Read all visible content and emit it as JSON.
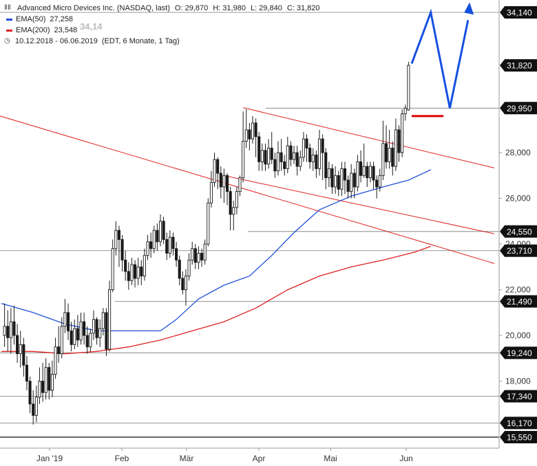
{
  "legend": {
    "title": "Advanced Micro Devices Inc. (NASDAQ, last)",
    "open": "O: 29,870",
    "high": "H: 31,980",
    "low": "L: 29,840",
    "close": "C: 31,820",
    "ema50_label": "EMA(50)",
    "ema50_value": "27,258",
    "ema200_label": "EMA(200)",
    "ema200_value": "23,548",
    "range": "10.12.2018 - 06.06.2019",
    "range_note": "(EDT, 6 Monate, 1 Tag)",
    "ghost_value": "34,14"
  },
  "colors": {
    "candle": "#1a1a1a",
    "ema50": "#1f4fd8",
    "ema200": "#e02020",
    "trend": "#e02020",
    "forecast": "#1450e0",
    "marker": "#dd0000",
    "price_tag": "#111111",
    "grid": "#d0d0d0"
  },
  "chart_data": {
    "type": "candlestick",
    "x_labels": [
      "Jan '19",
      "Feb",
      "Mär",
      "Apr",
      "Mai",
      "Jun"
    ],
    "y_ticks": [
      "18,000",
      "20,000",
      "22,000",
      "24,000",
      "26,000",
      "28,000"
    ],
    "ylim": [
      15.3,
      34.4
    ],
    "level_tags": [
      "34,140",
      "31,820",
      "29,950",
      "24,550",
      "23,710",
      "21,490",
      "19,240",
      "17,340",
      "16,170",
      "15,550"
    ],
    "levels": [
      34.14,
      29.95,
      24.55,
      23.71,
      21.49,
      19.24,
      17.34,
      16.17,
      15.55
    ],
    "current_price": 31.82,
    "ema50": [
      [
        0,
        21.4
      ],
      [
        10,
        21.0
      ],
      [
        20,
        20.5
      ],
      [
        30,
        20.2
      ],
      [
        40,
        20.2
      ],
      [
        50,
        20.2
      ],
      [
        55,
        20.7
      ],
      [
        62,
        21.6
      ],
      [
        70,
        22.2
      ],
      [
        78,
        22.6
      ],
      [
        85,
        23.5
      ],
      [
        92,
        24.5
      ],
      [
        100,
        25.5
      ],
      [
        110,
        26.1
      ],
      [
        120,
        26.5
      ],
      [
        128,
        26.8
      ],
      [
        135,
        27.25
      ]
    ],
    "ema200": [
      [
        0,
        19.3
      ],
      [
        10,
        19.3
      ],
      [
        20,
        19.2
      ],
      [
        30,
        19.3
      ],
      [
        40,
        19.5
      ],
      [
        50,
        19.8
      ],
      [
        60,
        20.2
      ],
      [
        70,
        20.6
      ],
      [
        80,
        21.2
      ],
      [
        90,
        22.0
      ],
      [
        100,
        22.6
      ],
      [
        110,
        23.0
      ],
      [
        120,
        23.3
      ],
      [
        130,
        23.65
      ],
      [
        135,
        23.9
      ]
    ],
    "candles": [
      [
        1,
        20.0,
        20.4,
        21.4,
        19.5
      ],
      [
        2,
        20.4,
        19.9,
        21.1,
        19.3
      ],
      [
        3,
        19.9,
        20.6,
        21.2,
        19.2
      ],
      [
        4,
        20.6,
        20.0,
        21.3,
        19.6
      ],
      [
        5,
        20.0,
        19.2,
        20.5,
        18.8
      ],
      [
        6,
        19.2,
        19.6,
        20.2,
        18.6
      ],
      [
        7,
        19.6,
        18.7,
        19.9,
        18.2
      ],
      [
        8,
        18.7,
        18.0,
        19.1,
        17.6
      ],
      [
        9,
        18.0,
        17.0,
        18.2,
        16.6
      ],
      [
        10,
        17.0,
        16.5,
        17.6,
        16.1
      ],
      [
        11,
        16.5,
        17.3,
        17.8,
        16.2
      ],
      [
        12,
        17.3,
        18.0,
        18.6,
        17.0
      ],
      [
        13,
        18.0,
        17.5,
        18.8,
        17.1
      ],
      [
        14,
        17.5,
        18.6,
        19.0,
        17.2
      ],
      [
        15,
        18.6,
        17.6,
        18.8,
        17.2
      ],
      [
        16,
        17.6,
        18.3,
        18.9,
        17.3
      ],
      [
        17,
        18.3,
        19.5,
        19.9,
        18.1
      ],
      [
        18,
        19.5,
        19.2,
        20.4,
        18.8
      ],
      [
        19,
        19.2,
        20.4,
        20.8,
        19.0
      ],
      [
        20,
        20.4,
        21.0,
        21.6,
        20.1
      ],
      [
        21,
        21.0,
        20.2,
        21.4,
        19.8
      ],
      [
        22,
        20.2,
        19.6,
        20.6,
        19.3
      ],
      [
        23,
        19.6,
        20.3,
        20.7,
        19.4
      ],
      [
        24,
        20.3,
        19.8,
        20.9,
        19.5
      ],
      [
        25,
        19.8,
        20.6,
        21.0,
        19.6
      ],
      [
        26,
        20.6,
        20.0,
        21.0,
        19.6
      ],
      [
        27,
        20.0,
        19.5,
        20.4,
        19.2
      ],
      [
        28,
        19.5,
        20.1,
        20.3,
        19.3
      ],
      [
        29,
        20.1,
        20.7,
        21.1,
        19.8
      ],
      [
        30,
        20.7,
        19.9,
        20.8,
        19.6
      ],
      [
        31,
        19.9,
        20.3,
        20.7,
        19.5
      ],
      [
        32,
        20.3,
        21.0,
        21.2,
        20.0
      ],
      [
        33,
        21.0,
        19.4,
        21.2,
        19.1
      ],
      [
        34,
        19.4,
        22.0,
        22.4,
        19.3
      ],
      [
        35,
        22.0,
        23.8,
        24.2,
        21.9
      ],
      [
        36,
        23.8,
        24.6,
        25.0,
        23.5
      ],
      [
        37,
        24.6,
        24.2,
        24.8,
        23.0
      ],
      [
        38,
        24.2,
        23.3,
        24.4,
        22.8
      ],
      [
        39,
        23.3,
        22.8,
        23.7,
        22.4
      ],
      [
        40,
        22.8,
        22.4,
        23.2,
        22.0
      ],
      [
        41,
        22.4,
        23.1,
        23.4,
        22.2
      ],
      [
        42,
        23.1,
        22.5,
        23.3,
        22.1
      ],
      [
        43,
        22.5,
        23.0,
        23.4,
        22.2
      ],
      [
        44,
        23.0,
        22.6,
        23.3,
        22.2
      ],
      [
        45,
        22.6,
        23.5,
        23.8,
        22.4
      ],
      [
        46,
        23.5,
        24.1,
        24.4,
        23.3
      ],
      [
        47,
        24.1,
        23.8,
        24.5,
        23.4
      ],
      [
        48,
        23.8,
        24.6,
        24.8,
        23.6
      ],
      [
        49,
        24.6,
        24.1,
        24.9,
        23.7
      ],
      [
        50,
        24.1,
        25.0,
        25.3,
        23.9
      ],
      [
        51,
        25.0,
        24.2,
        25.2,
        24.0
      ],
      [
        52,
        24.2,
        23.6,
        24.5,
        23.3
      ],
      [
        53,
        23.6,
        24.3,
        24.6,
        23.4
      ],
      [
        54,
        24.3,
        23.8,
        24.5,
        23.5
      ],
      [
        55,
        23.8,
        23.3,
        24.1,
        23.0
      ],
      [
        56,
        23.3,
        22.5,
        23.5,
        22.2
      ],
      [
        57,
        22.5,
        22.0,
        22.8,
        21.8
      ],
      [
        58,
        22.0,
        22.6,
        22.9,
        21.3
      ],
      [
        59,
        22.6,
        23.3,
        23.6,
        22.4
      ],
      [
        60,
        23.3,
        23.8,
        24.1,
        23.1
      ],
      [
        61,
        23.8,
        23.2,
        24.0,
        22.9
      ],
      [
        62,
        23.2,
        23.6,
        23.9,
        22.9
      ],
      [
        63,
        23.6,
        23.3,
        23.8,
        23.0
      ],
      [
        64,
        23.3,
        24.0,
        24.2,
        23.1
      ],
      [
        65,
        24.0,
        25.8,
        26.0,
        23.9
      ],
      [
        66,
        25.8,
        26.7,
        27.2,
        25.6
      ],
      [
        67,
        26.7,
        27.7,
        28.0,
        26.5
      ],
      [
        68,
        27.7,
        27.1,
        27.8,
        26.4
      ],
      [
        69,
        27.1,
        26.5,
        27.4,
        26.0
      ],
      [
        70,
        26.5,
        27.0,
        27.3,
        25.8
      ],
      [
        71,
        27.0,
        26.3,
        27.1,
        25.7
      ],
      [
        72,
        26.3,
        25.3,
        26.5,
        24.6
      ],
      [
        73,
        25.3,
        25.6,
        25.9,
        24.6
      ],
      [
        74,
        25.6,
        26.3,
        26.5,
        25.3
      ],
      [
        75,
        26.3,
        26.9,
        27.0,
        26.1
      ],
      [
        76,
        26.9,
        28.5,
        29.8,
        26.7
      ],
      [
        77,
        28.5,
        29.0,
        29.9,
        28.2
      ],
      [
        78,
        29.0,
        28.6,
        29.3,
        28.1
      ],
      [
        79,
        28.6,
        29.3,
        29.6,
        28.4
      ],
      [
        80,
        29.3,
        28.7,
        29.5,
        27.8
      ],
      [
        81,
        28.7,
        27.6,
        28.9,
        27.2
      ],
      [
        82,
        27.6,
        28.1,
        28.4,
        27.2
      ],
      [
        83,
        28.1,
        27.5,
        28.4,
        27.2
      ],
      [
        84,
        27.5,
        28.2,
        28.6,
        27.3
      ],
      [
        85,
        28.2,
        27.7,
        28.9,
        27.5
      ],
      [
        86,
        27.7,
        27.2,
        28.0,
        26.9
      ],
      [
        87,
        27.2,
        28.0,
        28.5,
        27.0
      ],
      [
        88,
        28.0,
        27.6,
        28.6,
        27.2
      ],
      [
        89,
        27.6,
        27.3,
        27.9,
        27.0
      ],
      [
        90,
        27.3,
        28.3,
        28.7,
        27.1
      ],
      [
        91,
        28.3,
        27.7,
        28.5,
        27.4
      ],
      [
        92,
        27.7,
        28.0,
        28.3,
        27.5
      ],
      [
        93,
        28.0,
        27.4,
        28.3,
        27.0
      ],
      [
        94,
        27.4,
        27.8,
        28.1,
        27.2
      ],
      [
        95,
        27.8,
        28.6,
        28.9,
        27.6
      ],
      [
        96,
        28.6,
        28.2,
        28.8,
        27.6
      ],
      [
        97,
        28.2,
        27.6,
        28.4,
        27.3
      ],
      [
        98,
        27.6,
        27.9,
        28.2,
        27.2
      ],
      [
        99,
        27.9,
        27.3,
        28.1,
        26.9
      ],
      [
        100,
        27.3,
        28.6,
        29.0,
        27.0
      ],
      [
        101,
        28.6,
        28.0,
        28.8,
        26.8
      ],
      [
        102,
        28.0,
        26.9,
        28.2,
        26.4
      ],
      [
        103,
        26.9,
        27.3,
        27.6,
        26.5
      ],
      [
        104,
        27.3,
        26.5,
        27.5,
        26.2
      ],
      [
        105,
        26.5,
        27.0,
        27.4,
        26.2
      ],
      [
        106,
        27.0,
        26.4,
        27.2,
        26.1
      ],
      [
        107,
        26.4,
        27.3,
        27.6,
        26.1
      ],
      [
        108,
        27.3,
        26.8,
        27.6,
        26.2
      ],
      [
        109,
        26.8,
        26.3,
        27.0,
        26.0
      ],
      [
        110,
        26.3,
        27.1,
        27.5,
        26.0
      ],
      [
        111,
        27.1,
        26.5,
        27.3,
        26.0
      ],
      [
        112,
        26.5,
        27.6,
        27.9,
        26.3
      ],
      [
        113,
        27.6,
        27.0,
        28.1,
        26.7
      ],
      [
        114,
        27.0,
        27.4,
        28.4,
        26.9
      ],
      [
        115,
        27.4,
        26.9,
        27.6,
        26.5
      ],
      [
        116,
        26.9,
        27.4,
        27.6,
        26.7
      ],
      [
        117,
        27.4,
        26.8,
        27.6,
        26.4
      ],
      [
        118,
        26.8,
        26.5,
        27.0,
        26.0
      ],
      [
        119,
        26.5,
        27.0,
        27.3,
        26.3
      ],
      [
        120,
        27.0,
        28.4,
        29.4,
        26.8
      ],
      [
        121,
        28.4,
        27.6,
        29.2,
        27.3
      ],
      [
        122,
        27.6,
        28.2,
        29.0,
        27.3
      ],
      [
        123,
        28.2,
        27.4,
        28.5,
        27.0
      ],
      [
        124,
        27.4,
        29.0,
        29.5,
        27.2
      ],
      [
        125,
        29.0,
        28.0,
        29.2,
        27.6
      ],
      [
        126,
        28.0,
        29.7,
        29.9,
        27.8
      ],
      [
        127,
        29.7,
        29.95,
        30.1,
        29.4
      ],
      [
        128,
        29.87,
        31.82,
        31.98,
        29.84
      ]
    ],
    "trend_lines": [
      [
        [
          -10,
          30.0
        ],
        [
          155,
          23.15
        ]
      ],
      [
        [
          76,
          29.97
        ],
        [
          155,
          27.33
        ]
      ],
      [
        [
          70,
          27.0
        ],
        [
          155,
          24.45
        ]
      ]
    ],
    "forecast_path": [
      [
        129,
        31.9
      ],
      [
        135,
        34.14
      ],
      [
        141,
        29.95
      ],
      [
        147,
        34.4
      ]
    ],
    "support_marker": [
      [
        129,
        29.6
      ],
      [
        139,
        29.6
      ]
    ]
  }
}
